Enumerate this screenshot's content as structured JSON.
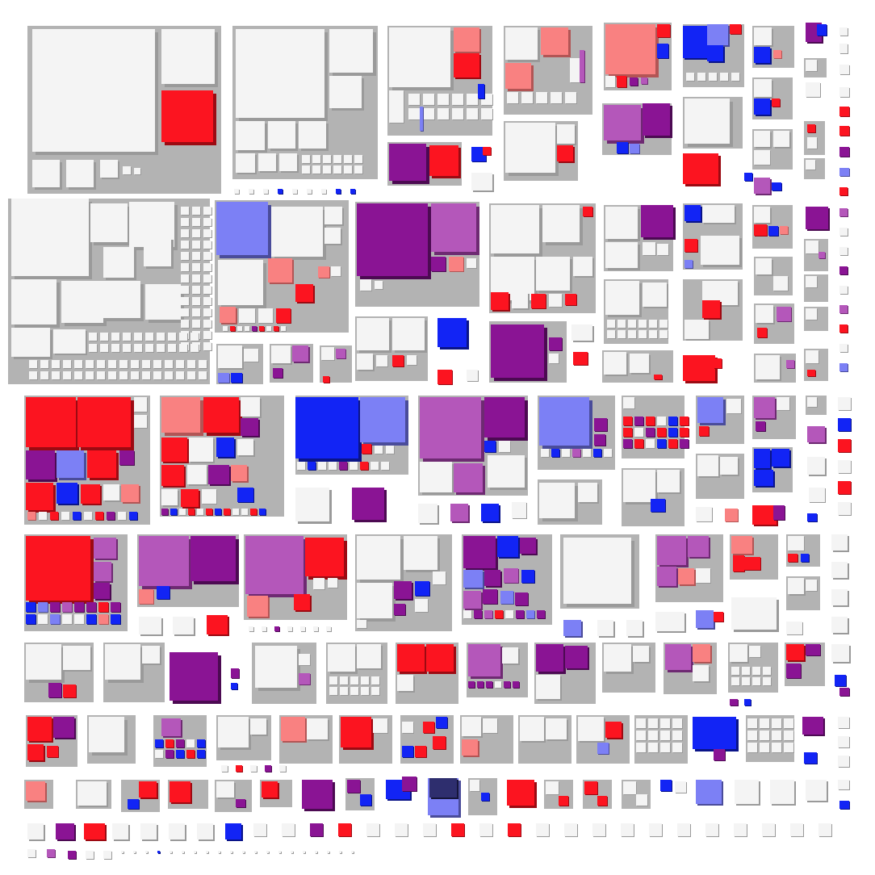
{
  "figure": {
    "kind": "3D treemap visualization",
    "colors": {
      "background": "#ffffff",
      "container": "#b3b3b3",
      "leaf_white": "#f4f4f4",
      "red": "#fc1420",
      "light_red": "#f98181",
      "blue": "#1224f5",
      "light_blue": "#7c80f5",
      "purple": "#8a1494",
      "light_purple": "#b457ba",
      "dark_blue": "#2e2e6e",
      "shadow": "#6f6f6f"
    },
    "legend": []
  }
}
